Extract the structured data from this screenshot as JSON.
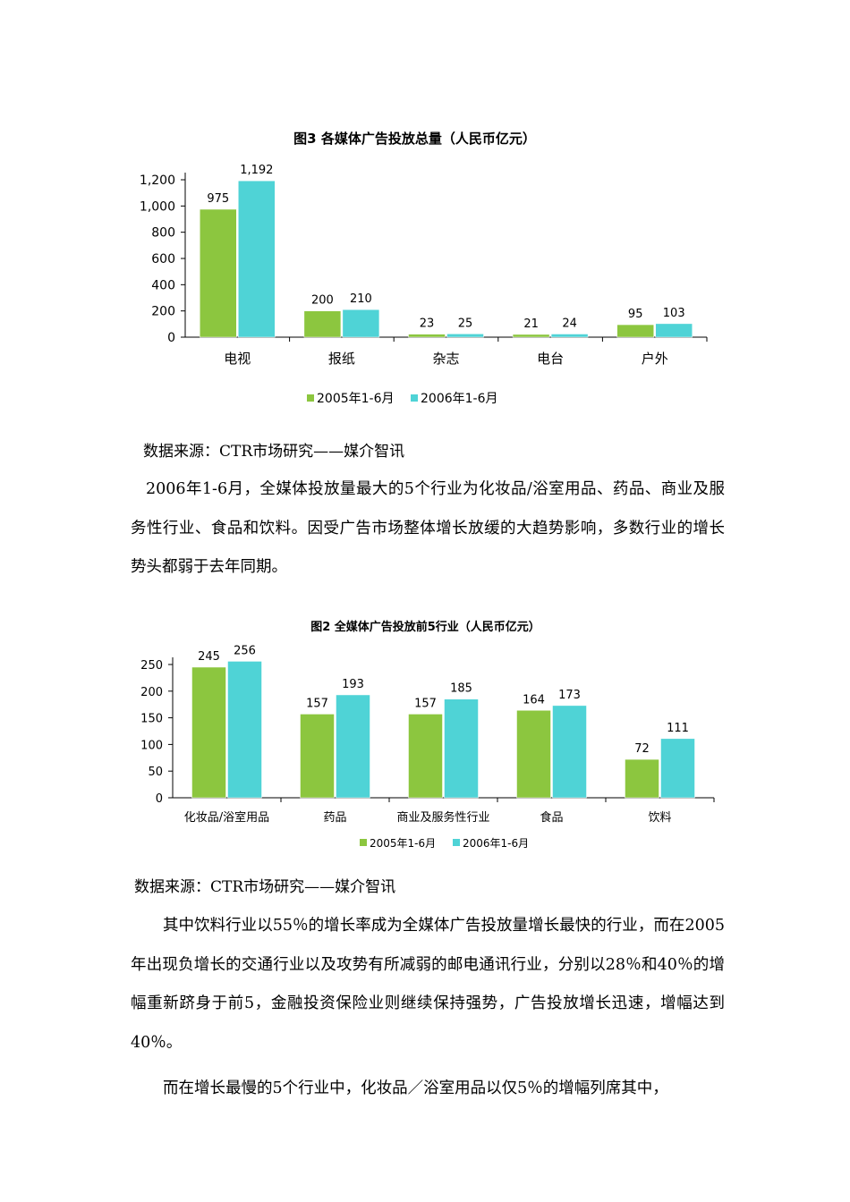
{
  "chart_data": [
    {
      "type": "bar",
      "title": "图3 各媒体广告投放总量（人民币亿元）",
      "categories": [
        "电视",
        "报纸",
        "杂志",
        "电台",
        "户外"
      ],
      "series": [
        {
          "name": "2005年1-6月",
          "values": [
            975,
            200,
            23,
            21,
            95
          ],
          "labels": [
            "975",
            "200",
            "23",
            "21",
            "95"
          ],
          "color": "#8cc63f"
        },
        {
          "name": "2006年1-6月",
          "values": [
            1192,
            210,
            25,
            24,
            103
          ],
          "labels": [
            "1,192",
            "210",
            "25",
            "24",
            "103"
          ],
          "color": "#4fd3d6"
        }
      ],
      "yticks": [
        "0",
        "200",
        "400",
        "600",
        "800",
        "1,000",
        "1,200"
      ],
      "ylim": [
        0,
        1200
      ],
      "legend": "bottom"
    },
    {
      "type": "bar",
      "title": "图2 全媒体广告投放前5行业（人民币亿元）",
      "categories": [
        "化妆品/浴室用品",
        "药品",
        "商业及服务性行业",
        "食品",
        "饮料"
      ],
      "series": [
        {
          "name": "2005年1-6月",
          "values": [
            245,
            157,
            157,
            164,
            72
          ],
          "labels": [
            "245",
            "157",
            "157",
            "164",
            "72"
          ],
          "color": "#8cc63f"
        },
        {
          "name": "2006年1-6月",
          "values": [
            256,
            193,
            185,
            173,
            111
          ],
          "labels": [
            "256",
            "193",
            "185",
            "173",
            "111"
          ],
          "color": "#4fd3d6"
        }
      ],
      "yticks": [
        "0",
        "50",
        "100",
        "150",
        "200",
        "250"
      ],
      "ylim": [
        0,
        250
      ],
      "legend": "bottom"
    }
  ],
  "text": {
    "source1": "数据来源：CTR市场研究——媒介智讯",
    "para1": "2006年1-6月，全媒体投放量最大的5个行业为化妆品/浴室用品、药品、商业及服务性行业、食品和饮料。因受广告市场整体增长放缓的大趋势影响，多数行业的增长势头都弱于去年同期。",
    "source2": "数据来源：CTR市场研究——媒介智讯",
    "para2": "其中饮料行业以55％的增长率成为全媒体广告投放量增长最快的行业，而在2005年出现负增长的交通行业以及攻势有所减弱的邮电通讯行业，分别以28％和40％的增幅重新跻身于前5，金融投资保险业则继续保持强势，广告投放增长迅速，增幅达到40％。",
    "para3": "而在增长最慢的5个行业中，化妆品／浴室用品以仅5％的增幅列席其中，"
  }
}
